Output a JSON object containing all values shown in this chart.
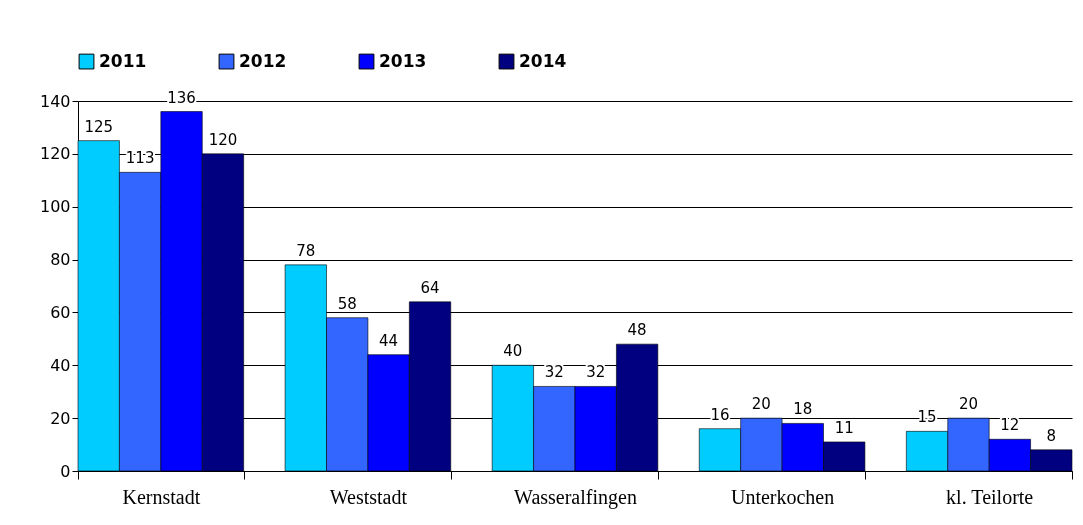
{
  "chart_data": {
    "type": "bar",
    "categories": [
      "Kernstadt",
      "Weststadt",
      "Wasseralfingen",
      "Unterkochen",
      "kl. Teilorte"
    ],
    "series": [
      {
        "name": "2011",
        "color": "#00ccff",
        "values": [
          125,
          78,
          40,
          16,
          15
        ]
      },
      {
        "name": "2012",
        "color": "#3366ff",
        "values": [
          113,
          58,
          32,
          20,
          20
        ]
      },
      {
        "name": "2013",
        "color": "#0000ff",
        "values": [
          136,
          44,
          32,
          18,
          12
        ]
      },
      {
        "name": "2014",
        "color": "#000080",
        "values": [
          120,
          64,
          48,
          11,
          8
        ]
      }
    ],
    "ylim": [
      0,
      140
    ],
    "yticks": [
      0,
      20,
      40,
      60,
      80,
      100,
      120,
      140
    ],
    "grid": "y",
    "legend": "top",
    "data_labels": true
  }
}
